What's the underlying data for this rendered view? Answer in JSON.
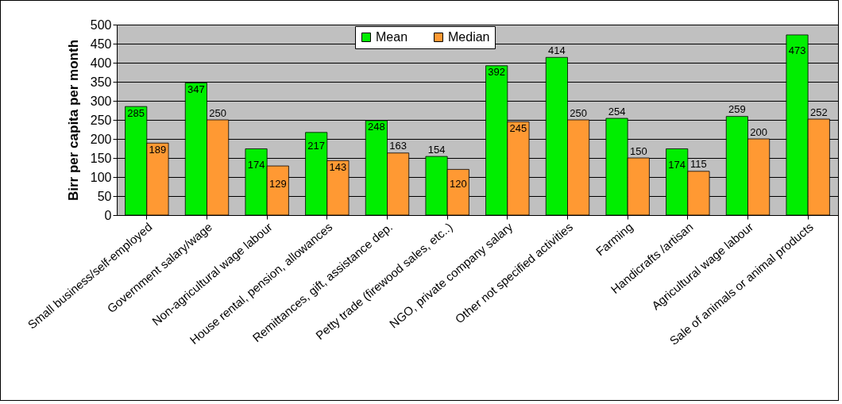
{
  "chart_data": {
    "type": "bar",
    "ylabel": "Birr per capita per month",
    "categories": [
      "Small business/self-employed",
      "Government salary/wage",
      "Non-agricultural wage labour",
      "House rental, pension, allowances",
      "Remittances, gift, assistance dep.",
      "Petty trade (firewood sales, etc..)",
      "NGO, private company salary",
      "Other not specified activities",
      "Farming",
      "Handicrafts /artisan",
      "Agricultural wage labour",
      "Sale of animals or animal products"
    ],
    "series": [
      {
        "name": "Mean",
        "color": "#00ee00",
        "values": [
          285,
          347,
          174,
          217,
          248,
          154,
          392,
          414,
          254,
          174,
          259,
          473
        ]
      },
      {
        "name": "Median",
        "color": "#ff9933",
        "values": [
          189,
          250,
          129,
          143,
          163,
          120,
          245,
          250,
          150,
          115,
          200,
          252
        ]
      }
    ],
    "ylim": [
      0,
      500
    ],
    "yticks": [
      0,
      50,
      100,
      150,
      200,
      250,
      300,
      350,
      400,
      450,
      500
    ],
    "grid": "y",
    "legend": "top",
    "data_labels": true
  }
}
